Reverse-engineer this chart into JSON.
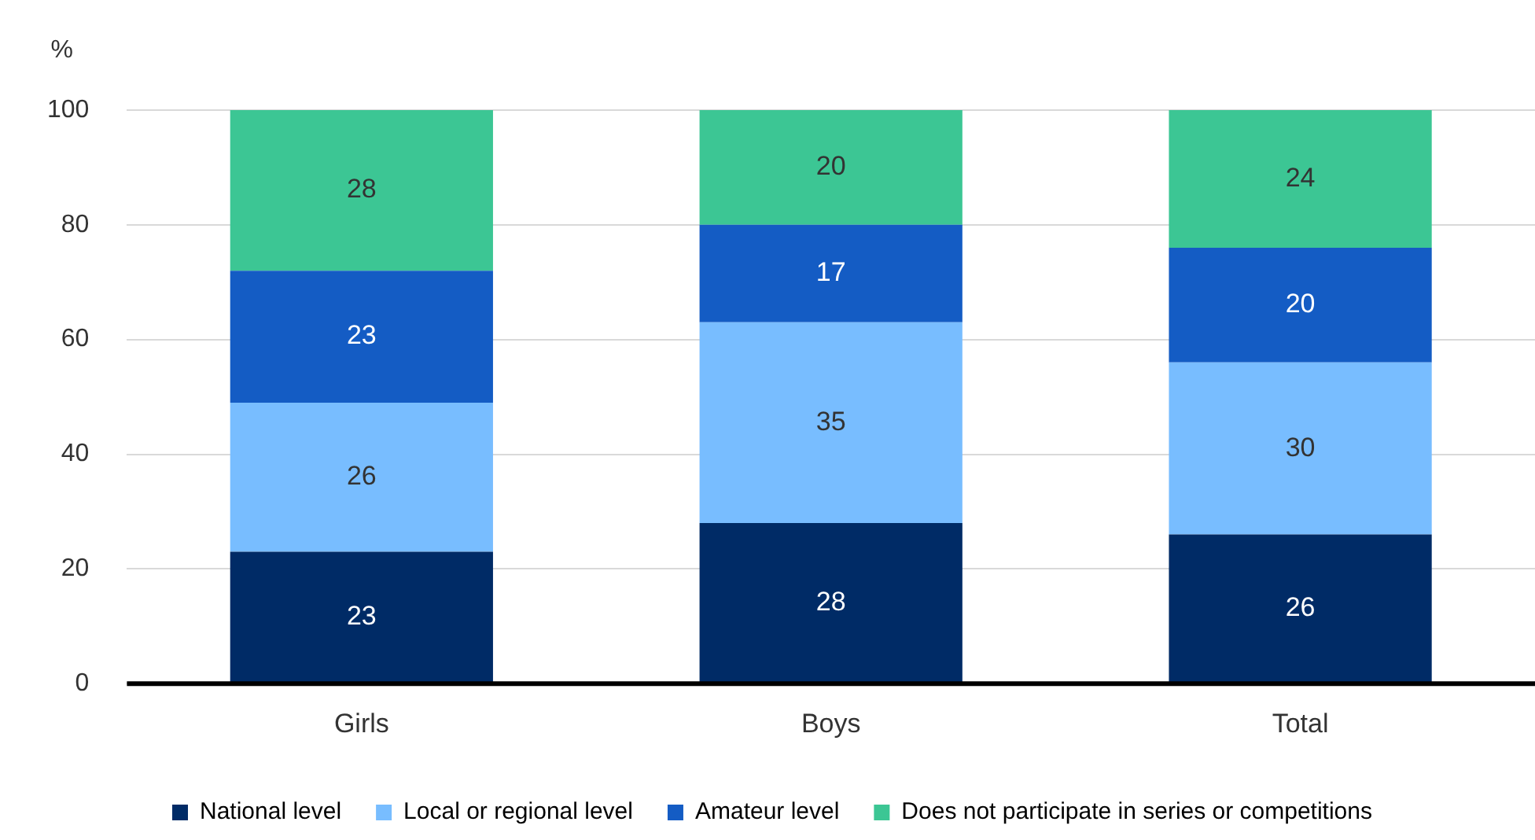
{
  "chart_data": {
    "type": "bar",
    "stacked": true,
    "ylabel": "%",
    "categories": [
      "Girls",
      "Boys",
      "Total"
    ],
    "series": [
      {
        "name": "National level",
        "color": "#002b66",
        "values": [
          23,
          28,
          26
        ]
      },
      {
        "name": "Local or regional level",
        "color": "#78bdff",
        "values": [
          26,
          35,
          30
        ]
      },
      {
        "name": "Amateur level",
        "color": "#145cc4",
        "values": [
          23,
          17,
          20
        ]
      },
      {
        "name": "Does not participate in series or competitions",
        "color": "#3cc694",
        "values": [
          28,
          20,
          24
        ]
      }
    ],
    "ylim": [
      0,
      100
    ],
    "yticks": [
      0,
      20,
      40,
      60,
      80,
      100
    ],
    "grid": "y",
    "legend": "bottom",
    "data_labels": true
  }
}
